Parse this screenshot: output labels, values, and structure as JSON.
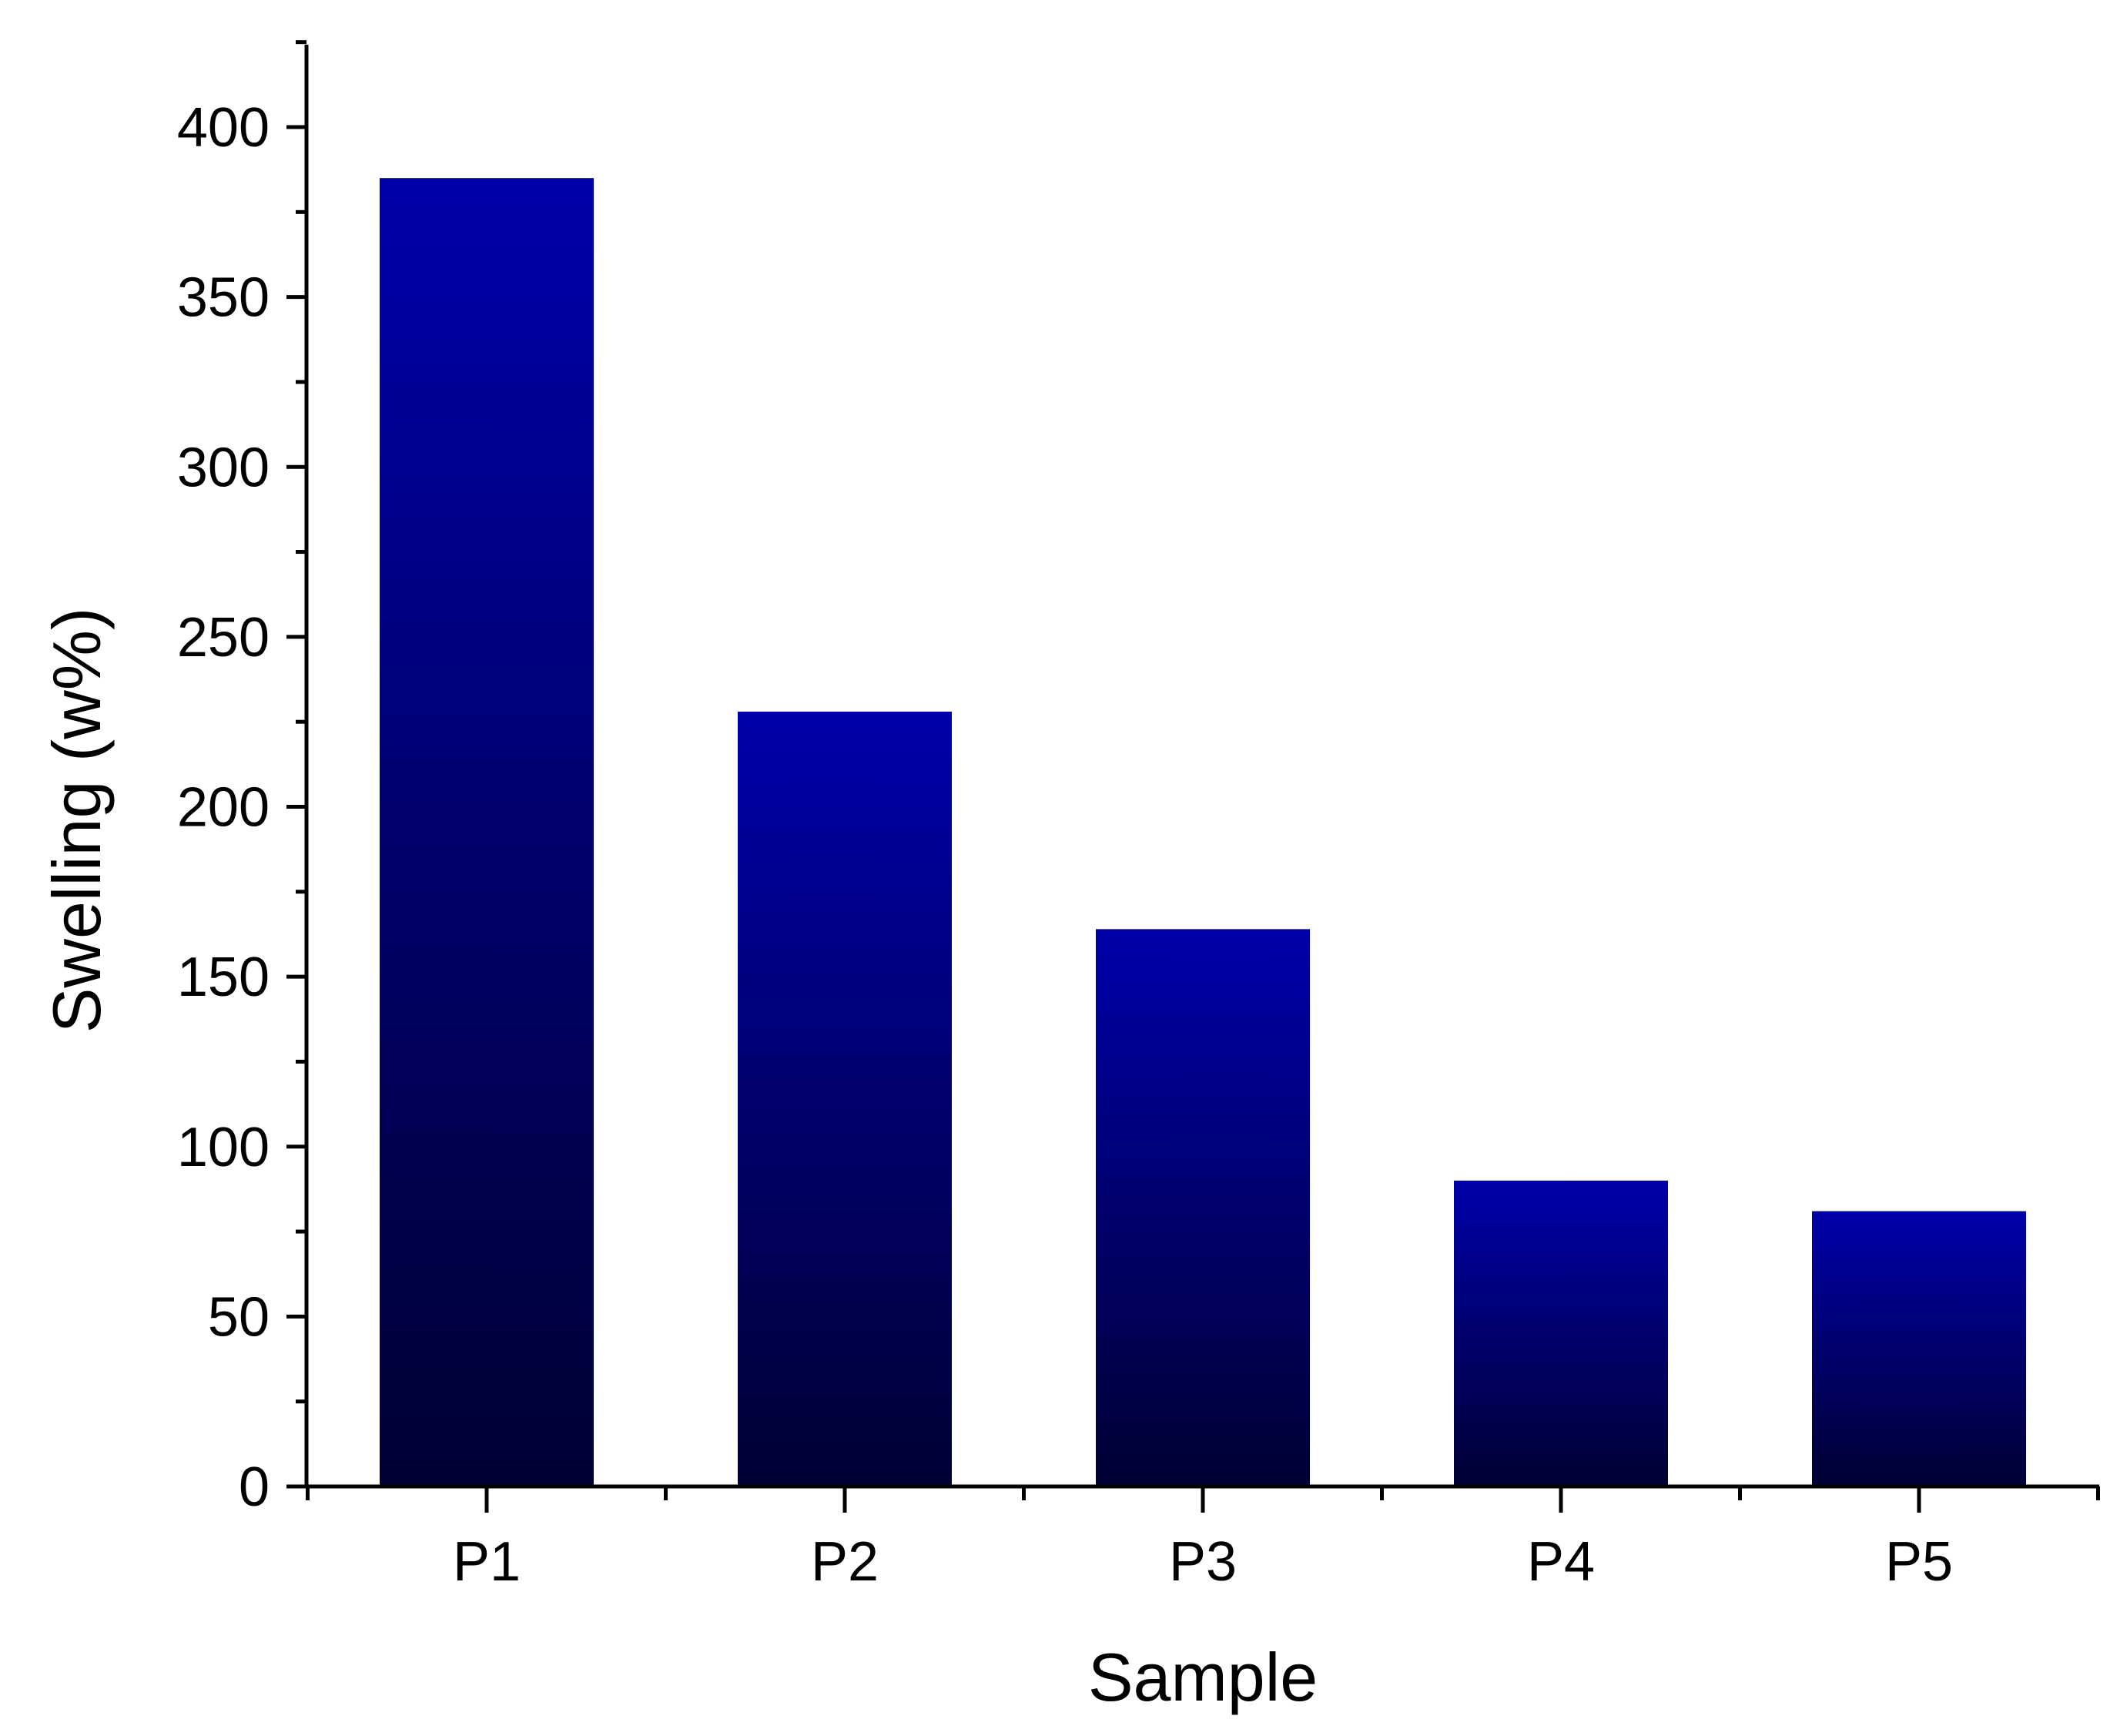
{
  "chart_data": {
    "type": "bar",
    "title": "",
    "xlabel": "Sample",
    "ylabel": "Swelling (w%)",
    "categories": [
      "P1",
      "P2",
      "P3",
      "P4",
      "P5"
    ],
    "values": [
      385,
      228,
      164,
      90,
      81
    ],
    "ylim": [
      0,
      425
    ],
    "yticks": [
      0,
      50,
      100,
      150,
      200,
      250,
      300,
      350,
      400
    ],
    "ytick_labels": [
      "0",
      "50",
      "100",
      "150",
      "200",
      "250",
      "300",
      "350",
      "400"
    ],
    "y_minor_step": 25,
    "grid": false,
    "legend": "none",
    "colors": {
      "bar_top": "#0000aa",
      "bar_bottom": "#000033",
      "axis": "#000000"
    }
  }
}
